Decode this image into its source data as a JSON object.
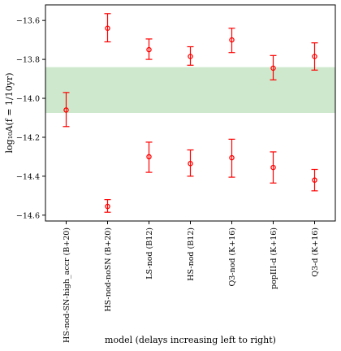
{
  "chart_data": {
    "type": "scatter",
    "xlabel": "model (delays increasing left to right)",
    "ylabel": "log₁₀A(f = 1/10yr)",
    "categories": [
      "HS-nod-SN-high_accr (B+20)",
      "HS-nod-noSN (B+20)",
      "LS-nod (B12)",
      "HS-nod (B12)",
      "Q3-nod (K+16)",
      "popIII-d (K+16)",
      "Q3-d (K+16)"
    ],
    "ylim": [
      -14.63,
      -13.52
    ],
    "yticks": [
      -13.6,
      -13.8,
      -14.0,
      -14.2,
      -14.4,
      -14.6
    ],
    "ytick_labels": [
      "−13.6",
      "−13.8",
      "−14.0",
      "−14.2",
      "−14.4",
      "−14.6"
    ],
    "band": {
      "low": -14.075,
      "high": -13.84,
      "color": "#cde8cc"
    },
    "marker_color": "#ff0000",
    "series": [
      {
        "values": [
          -14.06,
          -13.64,
          -13.75,
          -13.785,
          -13.7,
          -13.845,
          -13.785
        ],
        "err_low": [
          -14.145,
          -13.71,
          -13.8,
          -13.83,
          -13.765,
          -13.905,
          -13.855
        ],
        "err_high": [
          -13.97,
          -13.565,
          -13.695,
          -13.735,
          -13.64,
          -13.78,
          -13.715
        ]
      },
      {
        "values": [
          null,
          -14.555,
          -14.3,
          -14.335,
          -14.305,
          -14.355,
          -14.42
        ],
        "err_low": [
          null,
          -14.585,
          -14.38,
          -14.4,
          -14.405,
          -14.435,
          -14.475
        ],
        "err_high": [
          null,
          -14.52,
          -14.225,
          -14.265,
          -14.21,
          -14.275,
          -14.365
        ]
      }
    ],
    "grid": false,
    "legend": "none"
  }
}
